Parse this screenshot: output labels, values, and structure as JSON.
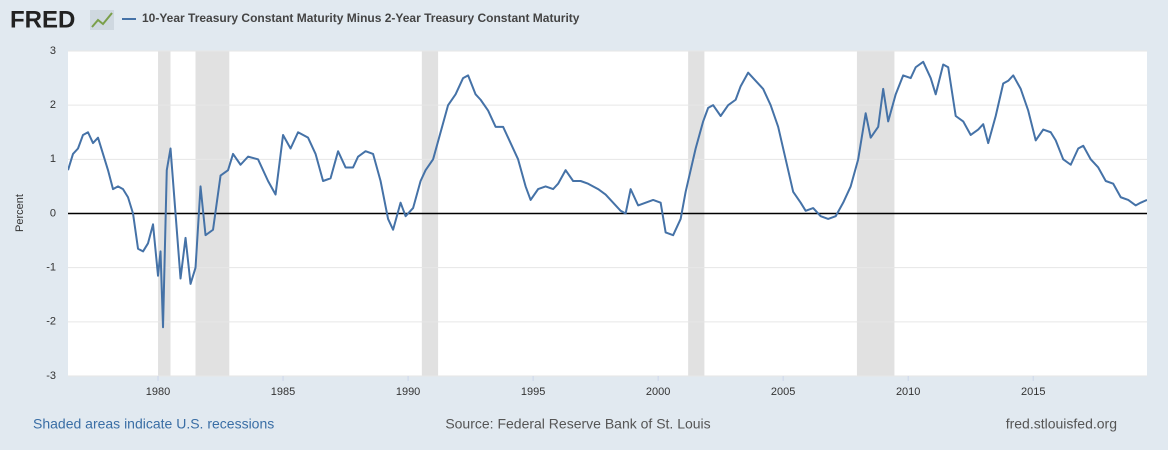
{
  "chart_data": {
    "type": "line",
    "logo": "FRED",
    "ylabel": "Percent",
    "recession_note": "Shaded areas indicate U.S. recessions",
    "source": "Source: Federal Reserve Bank of St. Louis",
    "site": "fred.stlouisfed.org",
    "xlim": [
      1976.4,
      2019.55
    ],
    "xticks": [
      1980,
      1985,
      1990,
      1995,
      2000,
      2005,
      2010,
      2015
    ],
    "ylim": [
      -3,
      3
    ],
    "yticks": [
      -3,
      -2,
      -1,
      0,
      1,
      2,
      3
    ],
    "grid": true,
    "recessions": [
      [
        1980.0,
        1980.5
      ],
      [
        1981.5,
        1982.85
      ],
      [
        1990.55,
        1991.2
      ],
      [
        2001.2,
        2001.85
      ],
      [
        2007.95,
        2009.45
      ]
    ],
    "recession_color": "#e1e1e1",
    "x": [
      1976.4,
      1976.6,
      1976.8,
      1977.0,
      1977.2,
      1977.4,
      1977.6,
      1977.8,
      1978.0,
      1978.2,
      1978.4,
      1978.6,
      1978.8,
      1979.0,
      1979.2,
      1979.4,
      1979.6,
      1979.8,
      1980.0,
      1980.1,
      1980.2,
      1980.35,
      1980.5,
      1980.7,
      1980.9,
      1981.1,
      1981.3,
      1981.5,
      1981.7,
      1981.9,
      1982.2,
      1982.5,
      1982.8,
      1983.0,
      1983.3,
      1983.6,
      1984.0,
      1984.4,
      1984.7,
      1985.0,
      1985.3,
      1985.6,
      1986.0,
      1986.3,
      1986.6,
      1986.9,
      1987.2,
      1987.5,
      1987.8,
      1988.0,
      1988.3,
      1988.6,
      1988.9,
      1989.2,
      1989.4,
      1989.7,
      1989.9,
      1990.2,
      1990.5,
      1990.7,
      1991.0,
      1991.3,
      1991.6,
      1991.9,
      1992.2,
      1992.4,
      1992.7,
      1992.9,
      1993.2,
      1993.5,
      1993.8,
      1994.1,
      1994.4,
      1994.7,
      1994.9,
      1995.2,
      1995.5,
      1995.8,
      1996.0,
      1996.3,
      1996.6,
      1996.9,
      1997.2,
      1997.6,
      1997.9,
      1998.2,
      1998.5,
      1998.7,
      1998.9,
      1999.2,
      1999.5,
      1999.8,
      2000.1,
      2000.3,
      2000.6,
      2000.9,
      2001.1,
      2001.3,
      2001.5,
      2001.8,
      2002.0,
      2002.2,
      2002.5,
      2002.8,
      2003.1,
      2003.3,
      2003.6,
      2003.9,
      2004.2,
      2004.5,
      2004.8,
      2005.1,
      2005.4,
      2005.7,
      2005.9,
      2006.2,
      2006.5,
      2006.8,
      2007.1,
      2007.4,
      2007.7,
      2008.0,
      2008.3,
      2008.5,
      2008.8,
      2009.0,
      2009.2,
      2009.5,
      2009.8,
      2010.1,
      2010.3,
      2010.6,
      2010.9,
      2011.1,
      2011.4,
      2011.6,
      2011.9,
      2012.2,
      2012.5,
      2012.8,
      2013.0,
      2013.2,
      2013.5,
      2013.8,
      2014.0,
      2014.2,
      2014.5,
      2014.8,
      2015.1,
      2015.4,
      2015.7,
      2015.9,
      2016.2,
      2016.5,
      2016.8,
      2017.0,
      2017.3,
      2017.6,
      2017.9,
      2018.2,
      2018.5,
      2018.8,
      2019.1,
      2019.3,
      2019.55
    ],
    "series": [
      {
        "name": "10-Year Treasury Constant Maturity Minus 2-Year Treasury Constant Maturity",
        "color": "#4572a7",
        "values": [
          0.8,
          1.1,
          1.2,
          1.45,
          1.5,
          1.3,
          1.4,
          1.1,
          0.8,
          0.45,
          0.5,
          0.45,
          0.3,
          0.0,
          -0.65,
          -0.7,
          -0.55,
          -0.2,
          -1.15,
          -0.7,
          -2.1,
          0.8,
          1.2,
          0.0,
          -1.2,
          -0.45,
          -1.3,
          -1.0,
          0.5,
          -0.4,
          -0.3,
          0.7,
          0.8,
          1.1,
          0.9,
          1.05,
          1.0,
          0.6,
          0.35,
          1.45,
          1.2,
          1.5,
          1.4,
          1.1,
          0.6,
          0.65,
          1.15,
          0.85,
          0.85,
          1.05,
          1.15,
          1.1,
          0.6,
          -0.1,
          -0.3,
          0.2,
          -0.05,
          0.1,
          0.6,
          0.8,
          1.0,
          1.5,
          2.0,
          2.2,
          2.5,
          2.55,
          2.2,
          2.1,
          1.9,
          1.6,
          1.6,
          1.3,
          1.0,
          0.5,
          0.25,
          0.45,
          0.5,
          0.45,
          0.55,
          0.8,
          0.6,
          0.6,
          0.55,
          0.45,
          0.35,
          0.2,
          0.05,
          0.0,
          0.45,
          0.15,
          0.2,
          0.25,
          0.2,
          -0.35,
          -0.4,
          -0.1,
          0.4,
          0.8,
          1.2,
          1.7,
          1.95,
          2.0,
          1.8,
          2.0,
          2.1,
          2.35,
          2.6,
          2.45,
          2.3,
          2.0,
          1.6,
          1.0,
          0.4,
          0.2,
          0.05,
          0.1,
          -0.05,
          -0.1,
          -0.05,
          0.2,
          0.5,
          1.0,
          1.85,
          1.4,
          1.6,
          2.3,
          1.7,
          2.2,
          2.55,
          2.5,
          2.7,
          2.8,
          2.5,
          2.2,
          2.75,
          2.7,
          1.8,
          1.7,
          1.45,
          1.55,
          1.65,
          1.3,
          1.8,
          2.4,
          2.45,
          2.55,
          2.3,
          1.9,
          1.35,
          1.55,
          1.5,
          1.35,
          1.0,
          0.9,
          1.2,
          1.25,
          1.0,
          0.85,
          0.6,
          0.55,
          0.3,
          0.25,
          0.15,
          0.2,
          0.25
        ]
      }
    ]
  }
}
